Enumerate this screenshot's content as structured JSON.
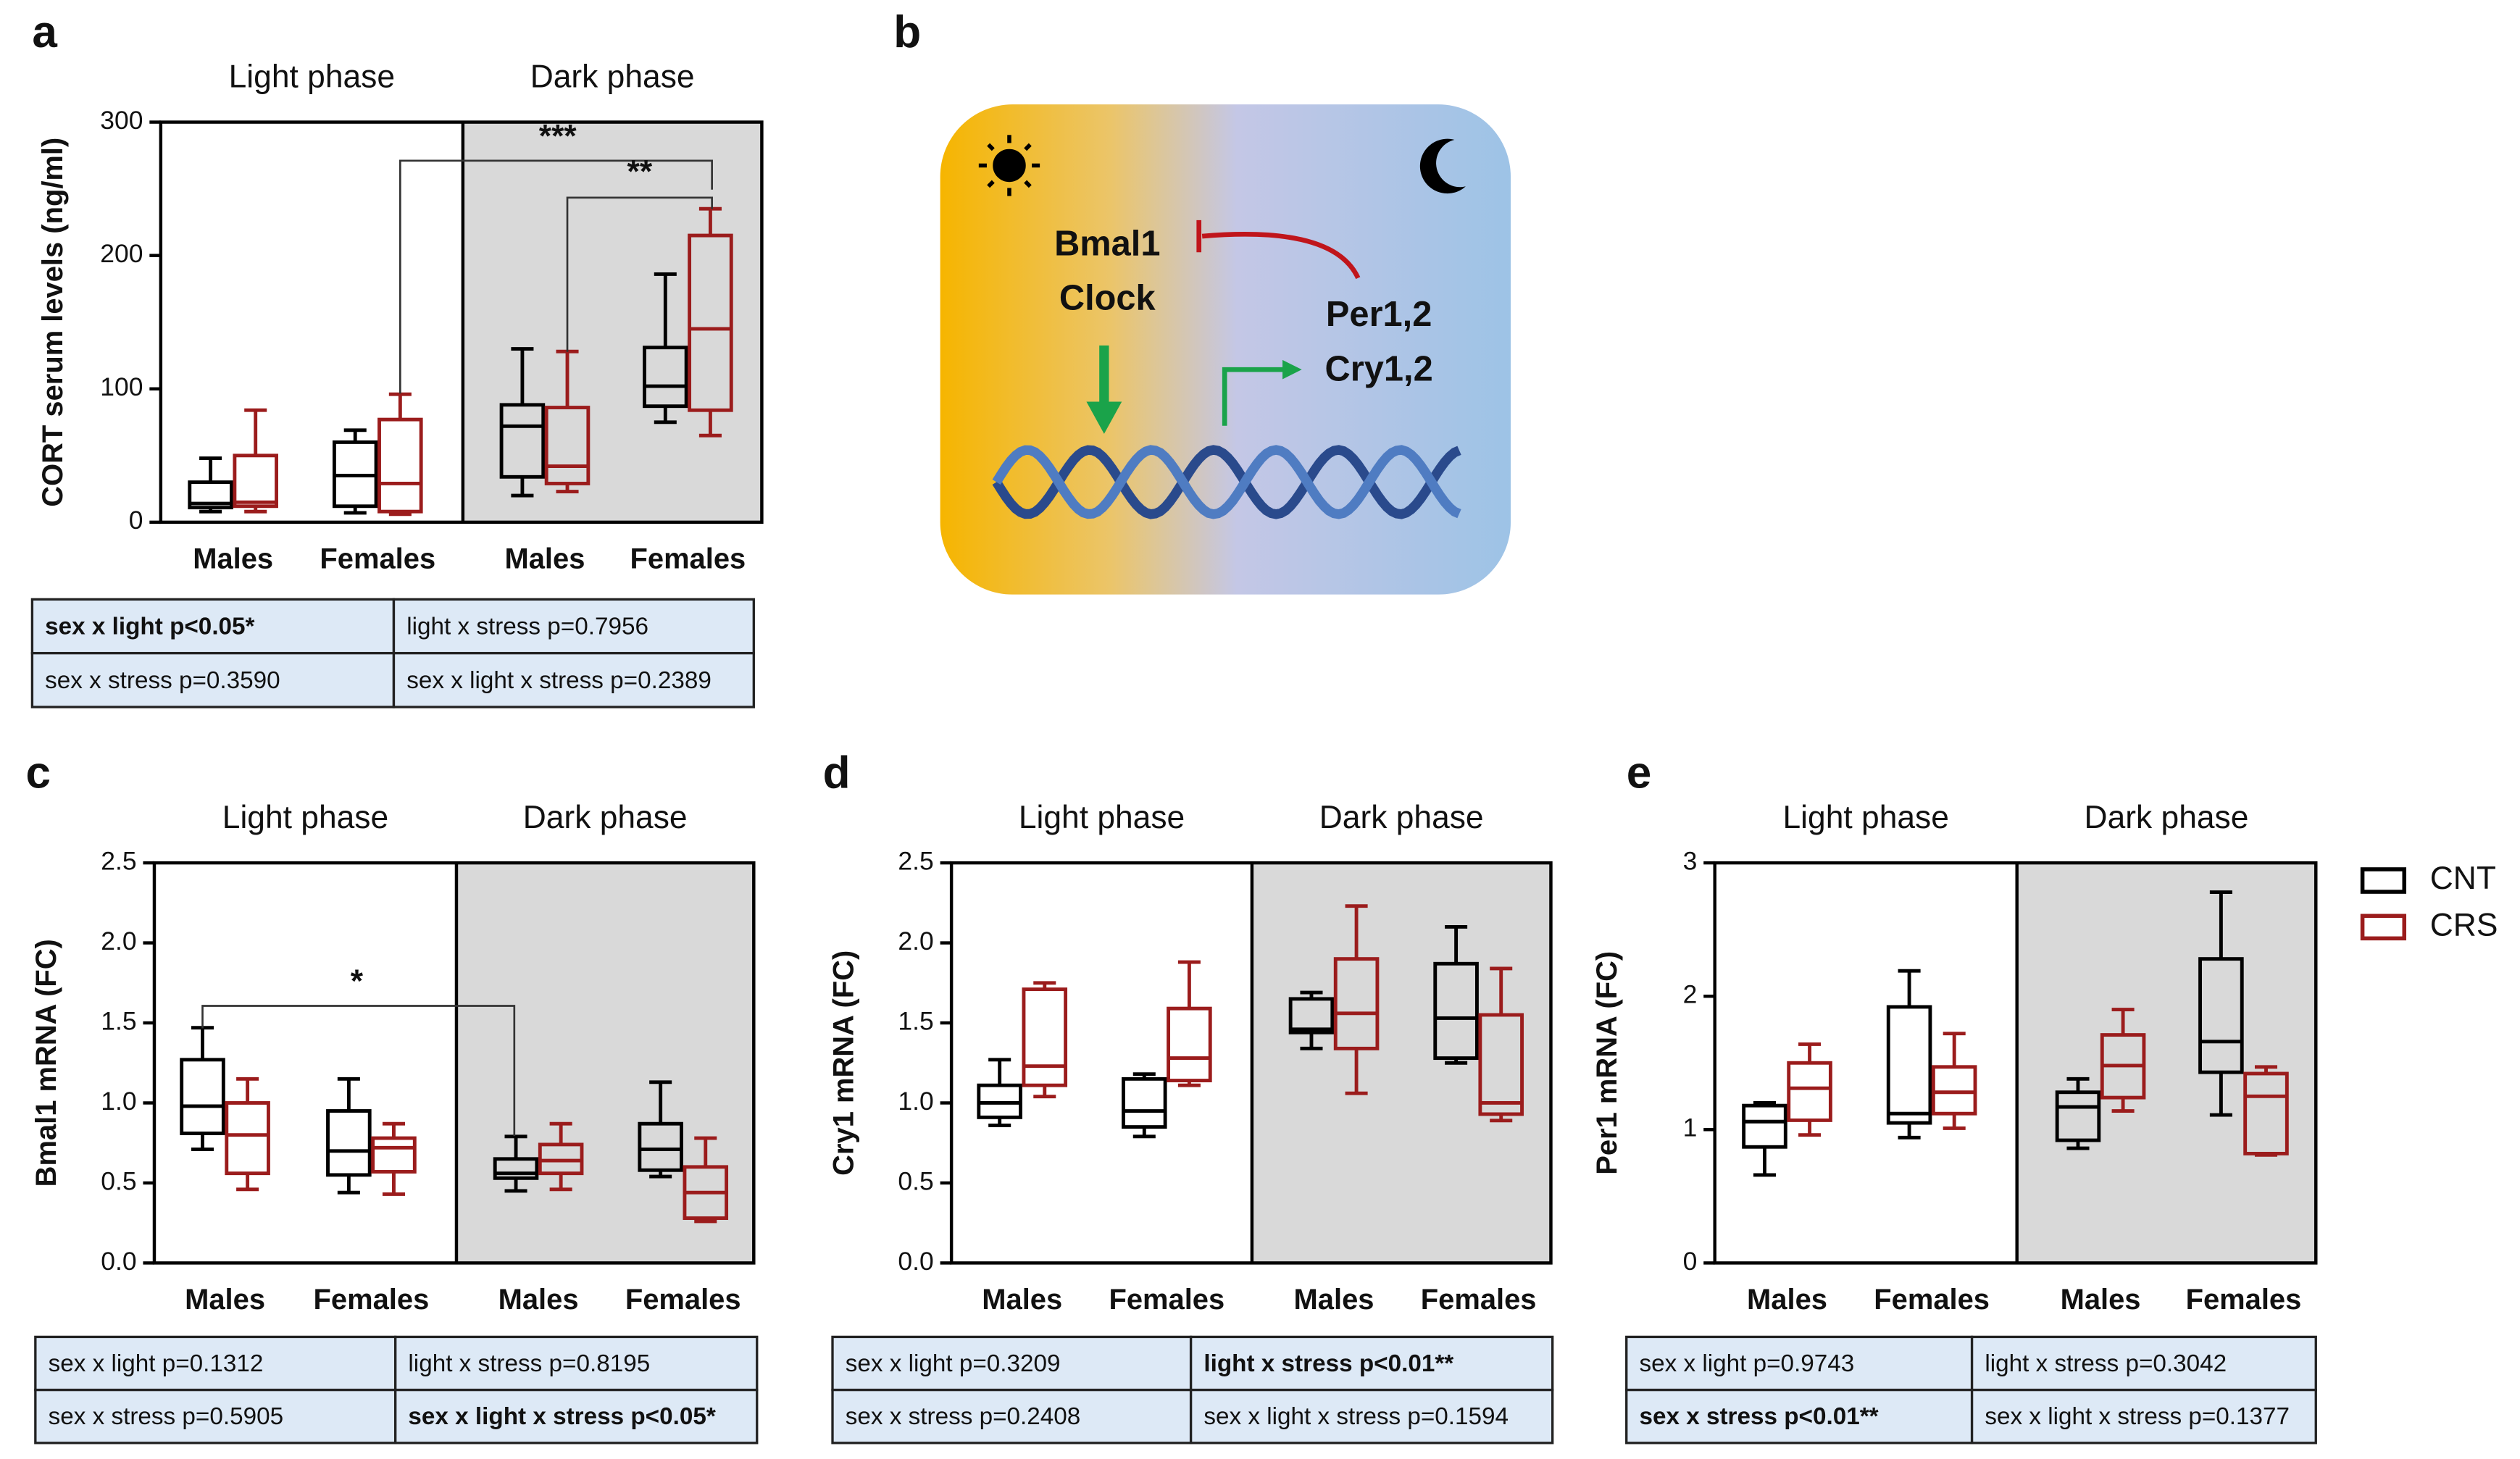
{
  "chart_data": [
    {
      "type": "box",
      "panel": "a",
      "phases": [
        "Light phase",
        "Dark phase"
      ],
      "categories": [
        "Males",
        "Females",
        "Males",
        "Females"
      ],
      "ylabel": "CORT serum levels (ng/ml)",
      "ylim": [
        0,
        300
      ],
      "yticks": [
        0,
        100,
        200,
        300
      ],
      "series": [
        {
          "color": "#000000",
          "values": [
            {
              "min": 8,
              "q1": 11,
              "median": 14,
              "q3": 30,
              "max": 48
            },
            {
              "min": 7,
              "q1": 12,
              "median": 35,
              "q3": 60,
              "max": 69
            },
            {
              "min": 20,
              "q1": 34,
              "median": 72,
              "q3": 88,
              "max": 130
            },
            {
              "min": 75,
              "q1": 87,
              "median": 102,
              "q3": 131,
              "max": 186
            }
          ]
        },
        {
          "color": "#9b1c1c",
          "values": [
            {
              "min": 8,
              "q1": 12,
              "median": 15,
              "q3": 50,
              "max": 84
            },
            {
              "min": 6,
              "q1": 8,
              "median": 29,
              "q3": 77,
              "max": 96
            },
            {
              "min": 23,
              "q1": 29,
              "median": 42,
              "q3": 86,
              "max": 128
            },
            {
              "min": 65,
              "q1": 84,
              "median": 145,
              "q3": 215,
              "max": 235
            }
          ]
        }
      ],
      "annotations": [
        "***",
        "**"
      ],
      "stats": [
        [
          {
            "text": "sex x light p<0.05*",
            "bold": true
          },
          {
            "text": "light x stress p=0.7956"
          }
        ],
        [
          {
            "text": "sex x stress p=0.3590"
          },
          {
            "text": "sex x light x stress p=0.2389"
          }
        ]
      ]
    },
    {
      "type": "box",
      "panel": "c",
      "phases": [
        "Light phase",
        "Dark phase"
      ],
      "categories": [
        "Males",
        "Females",
        "Males",
        "Females"
      ],
      "ylabel": "Bmal1 mRNA (FC)",
      "ylim": [
        0,
        2.5
      ],
      "yticks": [
        {
          "value": 0,
          "label": "0.0"
        },
        0.5,
        {
          "value": 1,
          "label": "1.0"
        },
        1.5,
        {
          "value": 2,
          "label": "2.0"
        },
        2.5
      ],
      "series": [
        {
          "color": "#000000",
          "values": [
            {
              "min": 0.71,
              "q1": 0.81,
              "median": 0.98,
              "q3": 1.27,
              "max": 1.47
            },
            {
              "min": 0.44,
              "q1": 0.55,
              "median": 0.7,
              "q3": 0.95,
              "max": 1.15
            },
            {
              "min": 0.45,
              "q1": 0.53,
              "median": 0.56,
              "q3": 0.65,
              "max": 0.79
            },
            {
              "min": 0.54,
              "q1": 0.58,
              "median": 0.71,
              "q3": 0.87,
              "max": 1.13
            }
          ]
        },
        {
          "color": "#9b1c1c",
          "values": [
            {
              "min": 0.46,
              "q1": 0.56,
              "median": 0.8,
              "q3": 1.0,
              "max": 1.15
            },
            {
              "min": 0.43,
              "q1": 0.57,
              "median": 0.72,
              "q3": 0.78,
              "max": 0.87
            },
            {
              "min": 0.46,
              "q1": 0.56,
              "median": 0.64,
              "q3": 0.74,
              "max": 0.87
            },
            {
              "min": 0.26,
              "q1": 0.28,
              "median": 0.44,
              "q3": 0.6,
              "max": 0.78
            }
          ]
        }
      ],
      "annotations": [
        "*"
      ],
      "stats": [
        [
          {
            "text": "sex x light p=0.1312"
          },
          {
            "text": "light x stress p=0.8195"
          }
        ],
        [
          {
            "text": "sex x stress p=0.5905"
          },
          {
            "text": "sex x light x stress p<0.05*",
            "bold": true
          }
        ]
      ]
    },
    {
      "type": "box",
      "panel": "d",
      "phases": [
        "Light phase",
        "Dark phase"
      ],
      "categories": [
        "Males",
        "Females",
        "Males",
        "Females"
      ],
      "ylabel": "Cry1 mRNA (FC)",
      "ylim": [
        0,
        2.5
      ],
      "yticks": [
        {
          "value": 0,
          "label": "0.0"
        },
        0.5,
        {
          "value": 1,
          "label": "1.0"
        },
        1.5,
        {
          "value": 2,
          "label": "2.0"
        },
        2.5
      ],
      "series": [
        {
          "color": "#000000",
          "values": [
            {
              "min": 0.86,
              "q1": 0.91,
              "median": 1.0,
              "q3": 1.11,
              "max": 1.27
            },
            {
              "min": 0.79,
              "q1": 0.85,
              "median": 0.95,
              "q3": 1.15,
              "max": 1.18
            },
            {
              "min": 1.34,
              "q1": 1.44,
              "median": 1.46,
              "q3": 1.65,
              "max": 1.69
            },
            {
              "min": 1.25,
              "q1": 1.28,
              "median": 1.53,
              "q3": 1.87,
              "max": 2.1
            }
          ]
        },
        {
          "color": "#9b1c1c",
          "values": [
            {
              "min": 1.04,
              "q1": 1.11,
              "median": 1.23,
              "q3": 1.71,
              "max": 1.75
            },
            {
              "min": 1.11,
              "q1": 1.14,
              "median": 1.28,
              "q3": 1.59,
              "max": 1.88
            },
            {
              "min": 1.06,
              "q1": 1.34,
              "median": 1.56,
              "q3": 1.9,
              "max": 2.23
            },
            {
              "min": 0.89,
              "q1": 0.93,
              "median": 1.0,
              "q3": 1.55,
              "max": 1.84
            }
          ]
        }
      ],
      "stats": [
        [
          {
            "text": "sex x light p=0.3209"
          },
          {
            "text": "light x stress p<0.01**",
            "bold": true
          }
        ],
        [
          {
            "text": "sex x stress p=0.2408"
          },
          {
            "text": "sex x light x stress p=0.1594"
          }
        ]
      ]
    },
    {
      "type": "box",
      "panel": "e",
      "phases": [
        "Light phase",
        "Dark phase"
      ],
      "categories": [
        "Males",
        "Females",
        "Males",
        "Females"
      ],
      "ylabel": "Per1 mRNA (FC)",
      "ylim": [
        0,
        3
      ],
      "yticks": [
        0,
        1,
        2,
        3
      ],
      "series": [
        {
          "name": "CNT",
          "color": "#000000",
          "values": [
            {
              "min": 0.66,
              "q1": 0.87,
              "median": 1.06,
              "q3": 1.18,
              "max": 1.2
            },
            {
              "min": 0.94,
              "q1": 1.05,
              "median": 1.12,
              "q3": 1.92,
              "max": 2.19
            },
            {
              "min": 0.86,
              "q1": 0.92,
              "median": 1.17,
              "q3": 1.28,
              "max": 1.38
            },
            {
              "min": 1.11,
              "q1": 1.43,
              "median": 1.66,
              "q3": 2.28,
              "max": 2.78
            }
          ]
        },
        {
          "name": "CRS",
          "color": "#9b1c1c",
          "values": [
            {
              "min": 0.96,
              "q1": 1.07,
              "median": 1.31,
              "q3": 1.5,
              "max": 1.64
            },
            {
              "min": 1.01,
              "q1": 1.12,
              "median": 1.28,
              "q3": 1.47,
              "max": 1.72
            },
            {
              "min": 1.14,
              "q1": 1.24,
              "median": 1.48,
              "q3": 1.71,
              "max": 1.9
            },
            {
              "min": 0.81,
              "q1": 0.82,
              "median": 1.25,
              "q3": 1.42,
              "max": 1.47
            }
          ]
        }
      ],
      "stats": [
        [
          {
            "text": "sex x light p=0.9743"
          },
          {
            "text": "light x stress p=0.3042"
          }
        ],
        [
          {
            "text": "sex x stress p<0.01**",
            "bold": true
          },
          {
            "text": "sex x light x stress p=0.1377"
          }
        ]
      ]
    }
  ],
  "diagram": {
    "panel": "b",
    "labels": [
      "Bmal1",
      "Clock",
      "Per1,2",
      "Cry1,2"
    ]
  }
}
